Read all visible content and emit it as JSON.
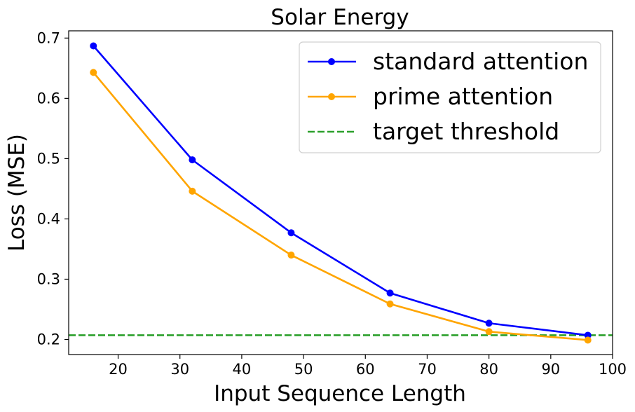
{
  "chart_data": {
    "type": "line",
    "title": "Solar Energy",
    "xlabel": "Input Sequence Length",
    "ylabel": "Loss (MSE)",
    "xlim": [
      12,
      100
    ],
    "ylim": [
      0.175,
      0.712
    ],
    "xticks": [
      20,
      30,
      40,
      50,
      60,
      70,
      80,
      90,
      100
    ],
    "xtick_labels": [
      "20",
      "30",
      "40",
      "50",
      "60",
      "70",
      "80",
      "90",
      "100"
    ],
    "yticks": [
      0.2,
      0.3,
      0.4,
      0.5,
      0.6,
      0.7
    ],
    "ytick_labels": [
      "0.2",
      "0.3",
      "0.4",
      "0.5",
      "0.6",
      "0.7"
    ],
    "grid": false,
    "legend_position": "top-right",
    "series": [
      {
        "name": "standard attention",
        "color": "#0000ff",
        "x": [
          16,
          32,
          48,
          64,
          80,
          96
        ],
        "values": [
          0.687,
          0.498,
          0.377,
          0.277,
          0.227,
          0.207
        ]
      },
      {
        "name": "prime attention",
        "color": "#ffa500",
        "x": [
          16,
          32,
          48,
          64,
          80,
          96
        ],
        "values": [
          0.643,
          0.446,
          0.34,
          0.259,
          0.213,
          0.199
        ]
      }
    ],
    "reference_lines": [
      {
        "name": "target threshold",
        "orientation": "horizontal",
        "value": 0.207,
        "color": "#2ca02c",
        "style": "dashed"
      }
    ]
  }
}
